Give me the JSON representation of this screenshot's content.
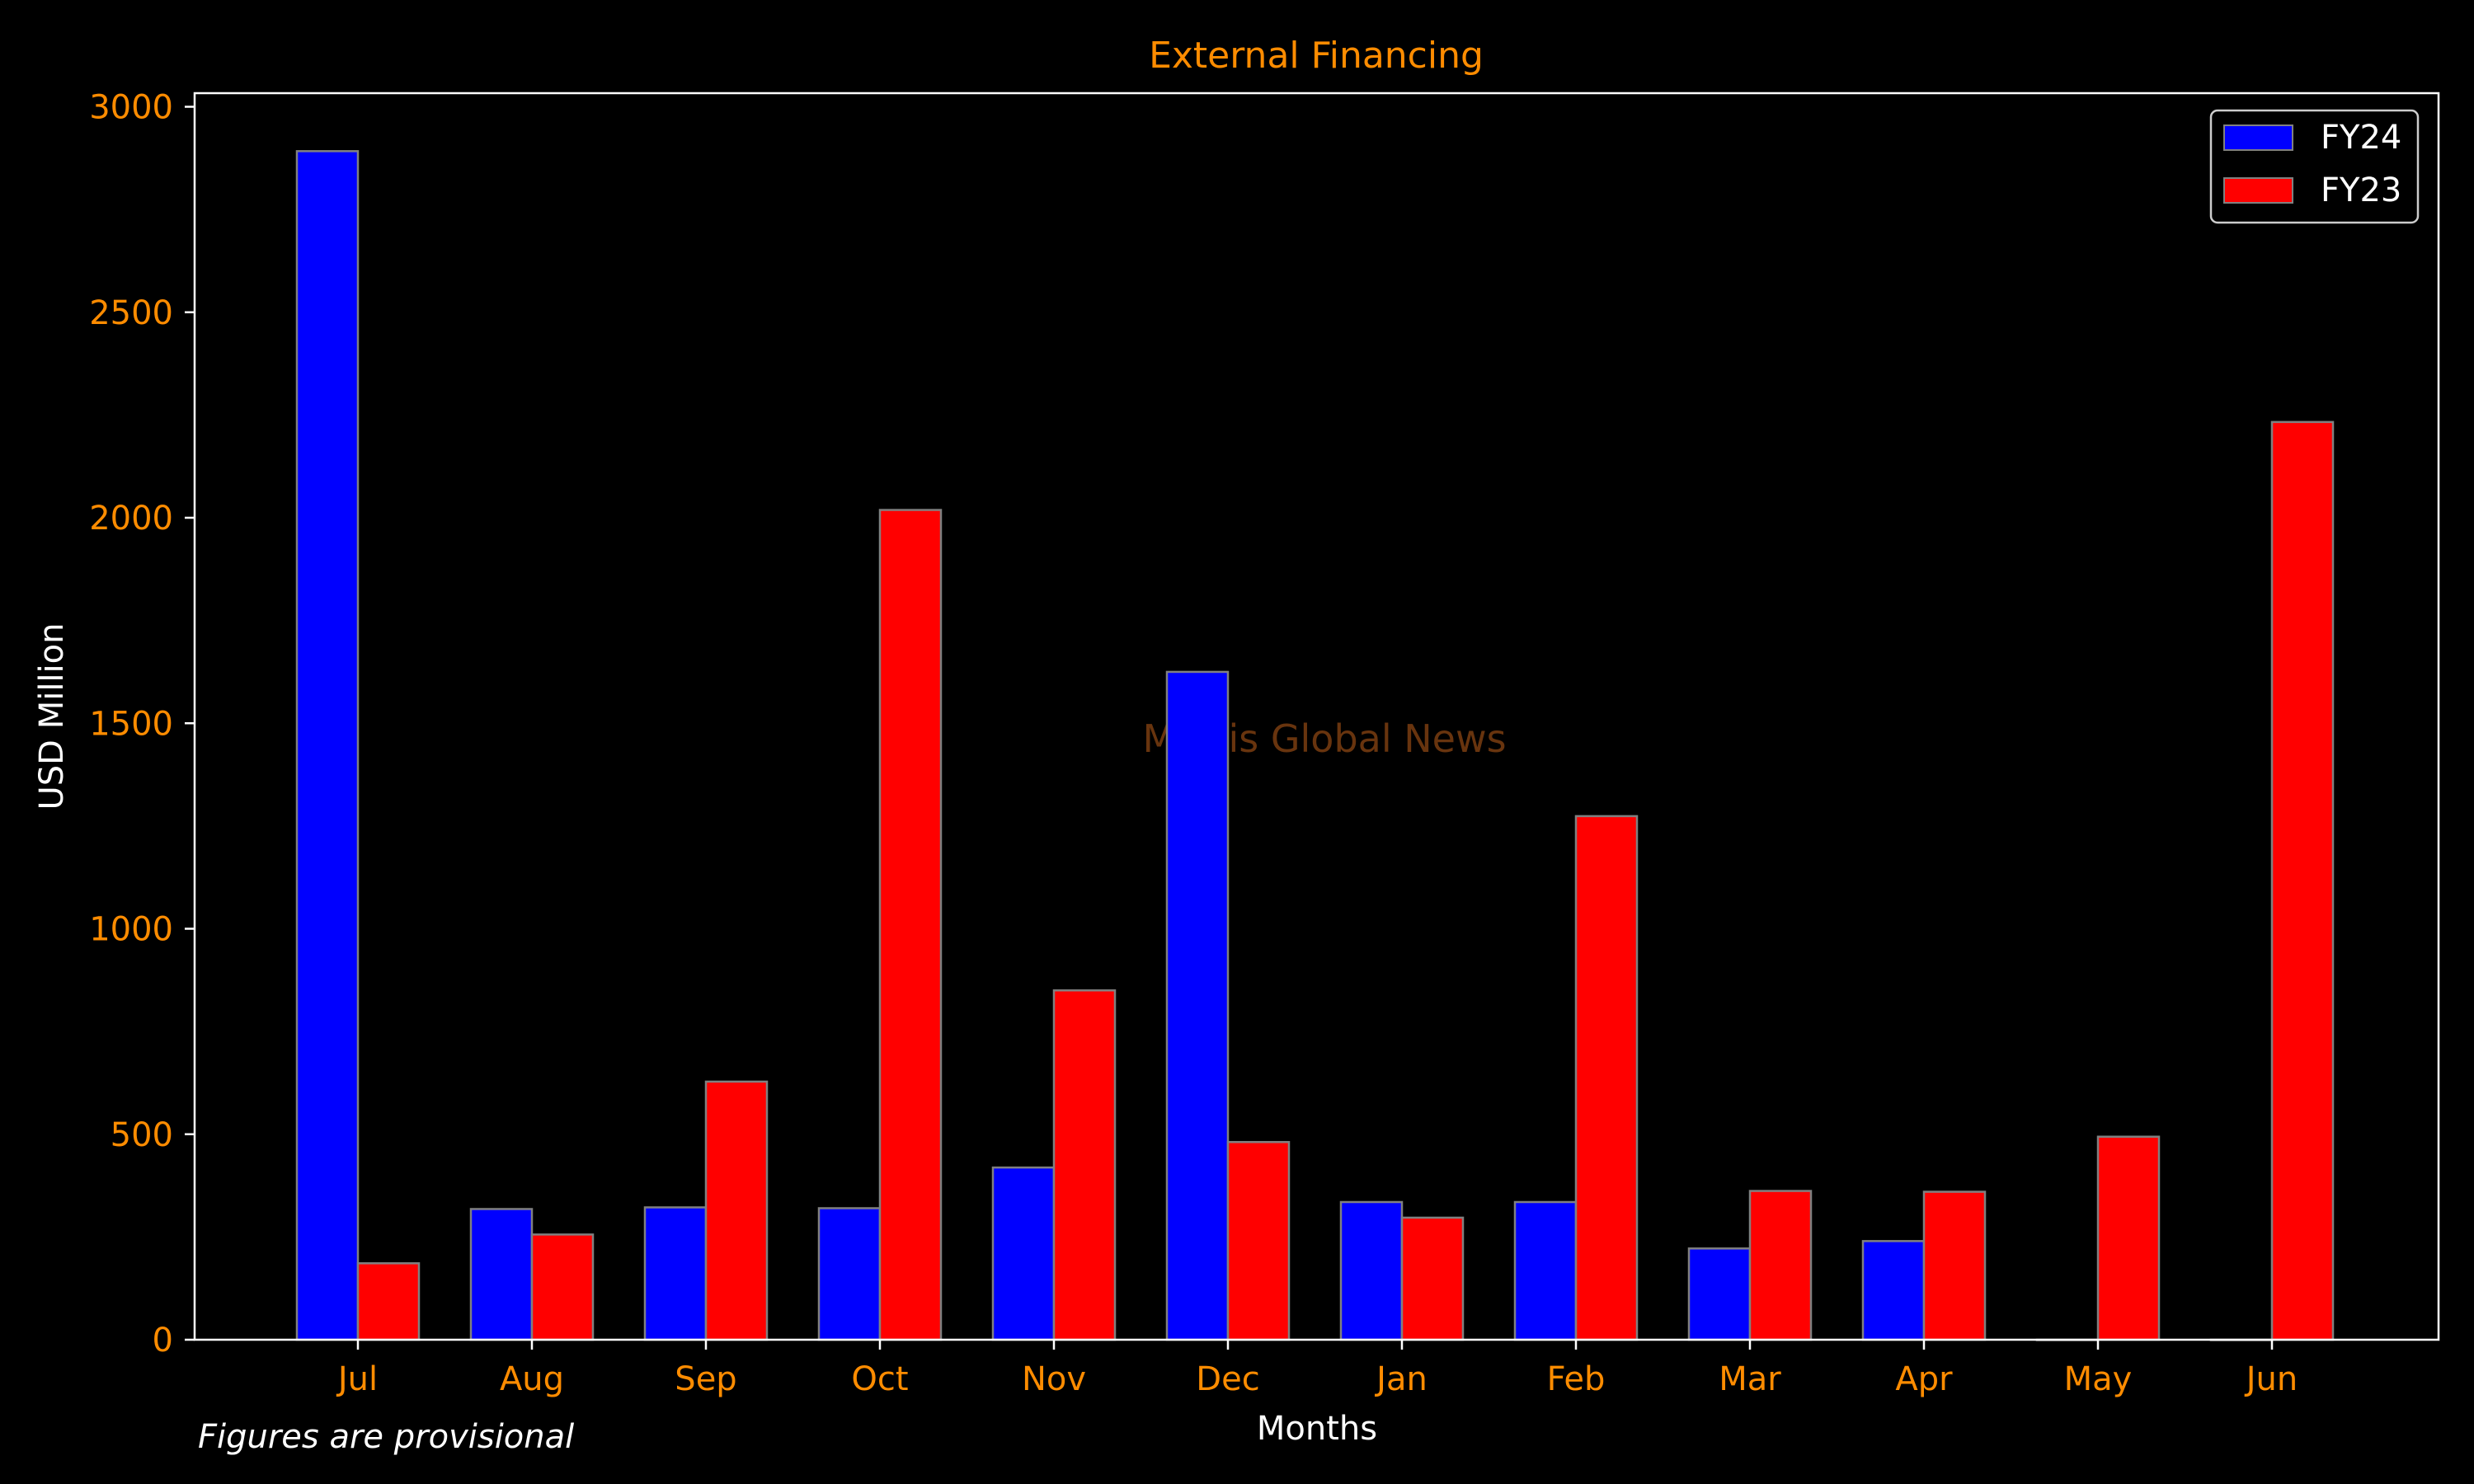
{
  "chart_data": {
    "type": "bar",
    "title": "External Financing",
    "xlabel": "Months",
    "ylabel": "USD Million",
    "categories": [
      "Jul",
      "Aug",
      "Sep",
      "Oct",
      "Nov",
      "Dec",
      "Jan",
      "Feb",
      "Mar",
      "Apr",
      "May",
      "Jun"
    ],
    "series": [
      {
        "name": "FY24",
        "color": "#0000ff",
        "values": [
          2892,
          318,
          322,
          320,
          419,
          1625,
          335,
          335,
          222,
          240,
          0,
          0
        ]
      },
      {
        "name": "FY23",
        "color": "#ff0000",
        "values": [
          186,
          256,
          628,
          2019,
          850,
          481,
          297,
          1274,
          362,
          360,
          494,
          2233
        ]
      }
    ],
    "ylim": [
      0,
      3000
    ],
    "yticks": [
      0,
      500,
      1000,
      1500,
      2000,
      2500,
      3000
    ],
    "grid": false,
    "legend_position": "top-right",
    "watermark": "Mettis Global News",
    "footnote": "Figures are provisional",
    "colors": {
      "background": "#000000",
      "tick_text": "#ff8c00",
      "title": "#ff8c00",
      "axis_text": "#ffffff",
      "bar_edge": "#808080",
      "watermark": "#8b4513"
    }
  }
}
